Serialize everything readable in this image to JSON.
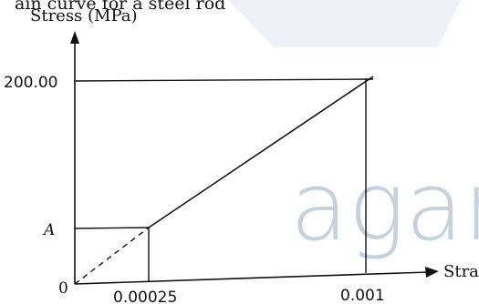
{
  "header_text": "ain curve for a steel rod",
  "watermark": {
    "text": "agaram",
    "color": "#c5d1dc"
  },
  "chart_data": {
    "type": "line",
    "xlabel": "Strain",
    "ylabel": "Stress (MPa)",
    "origin_label": "0",
    "xticks": [
      {
        "value": 0.00025,
        "label": "0.00025"
      },
      {
        "value": 0.001,
        "label": "0.001"
      }
    ],
    "yticks": [
      {
        "value": 200,
        "label": "200.00"
      },
      {
        "value": 50,
        "label": "A"
      }
    ],
    "solid_segment": {
      "x": [
        0.00025,
        0.001
      ],
      "y": [
        50,
        200
      ]
    },
    "dashed_segment": {
      "x": [
        0,
        0.00025
      ],
      "y": [
        0,
        50
      ]
    },
    "xlim": [
      0,
      0.00125
    ],
    "ylim": [
      0,
      250
    ],
    "line_color": "#111111"
  }
}
